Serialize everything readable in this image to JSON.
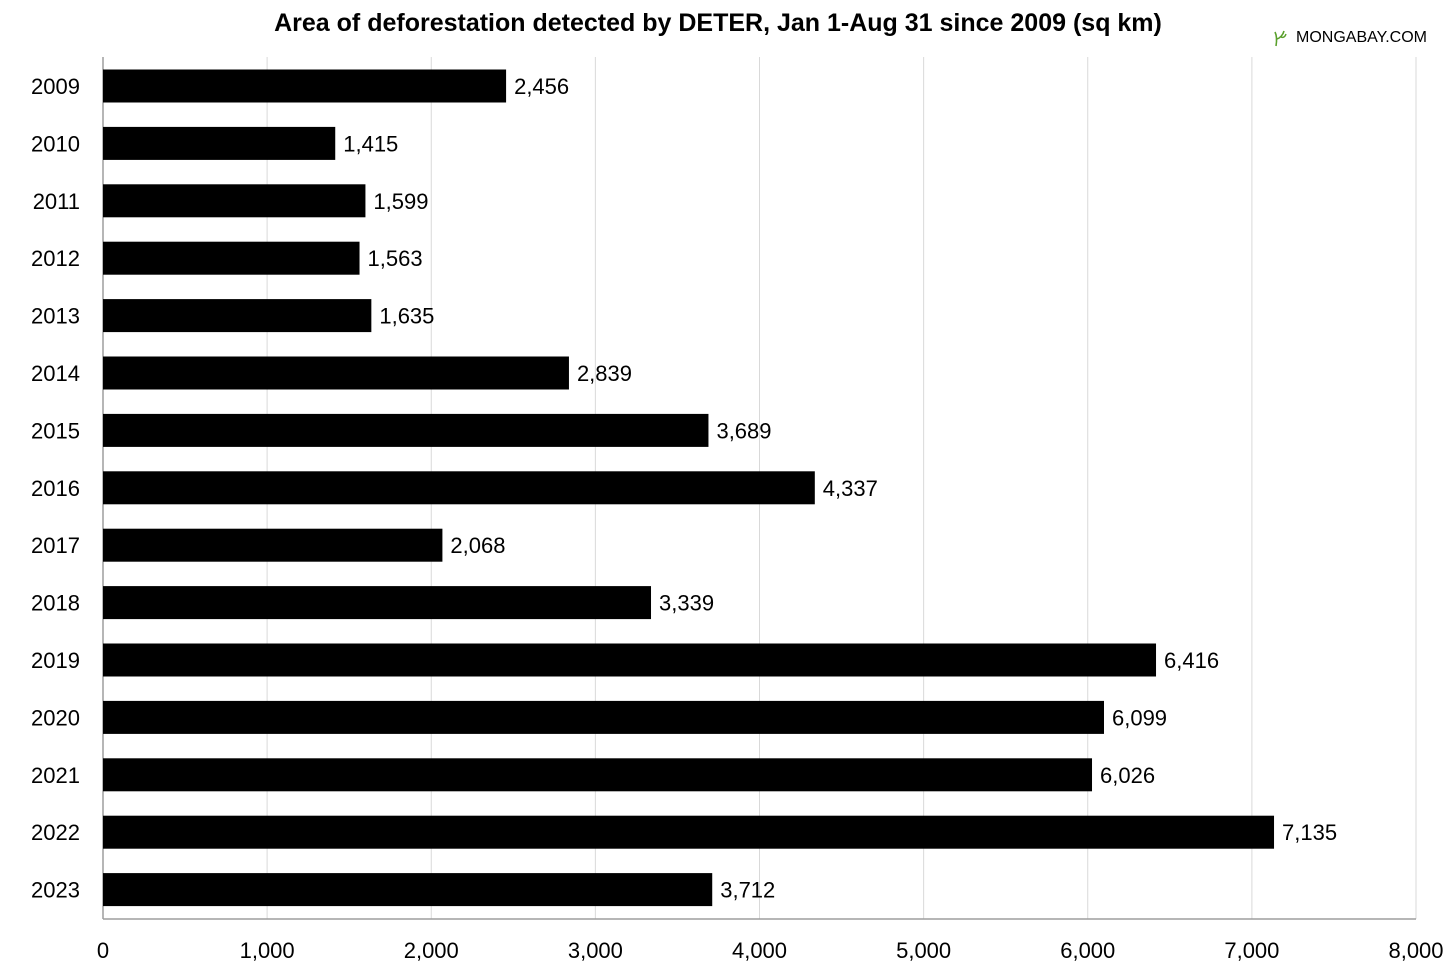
{
  "header": {
    "title": "Area of deforestation detected by DETER, Jan 1-Aug 31 since 2009 (sq km)",
    "brand": "MONGABAY.COM",
    "brand_icon": "mongabay-leaf-icon",
    "brand_icon_color": "#5aa02c"
  },
  "chart_data": {
    "type": "bar",
    "orientation": "horizontal",
    "title": "Area of deforestation detected by DETER, Jan 1-Aug 31 since 2009 (sq km)",
    "xlabel": "",
    "ylabel": "",
    "categories": [
      "2009",
      "2010",
      "2011",
      "2012",
      "2013",
      "2014",
      "2015",
      "2016",
      "2017",
      "2018",
      "2019",
      "2020",
      "2021",
      "2022",
      "2023"
    ],
    "values": [
      2456,
      1415,
      1599,
      1563,
      1635,
      2839,
      3689,
      4337,
      2068,
      3339,
      6416,
      6099,
      6026,
      7135,
      3712
    ],
    "value_labels": [
      "2,456",
      "1,415",
      "1,599",
      "1,563",
      "1,635",
      "2,839",
      "3,689",
      "4,337",
      "2,068",
      "3,339",
      "6,416",
      "6,099",
      "6,026",
      "7,135",
      "3,712"
    ],
    "xlim": [
      0,
      8000
    ],
    "xticks": [
      0,
      1000,
      2000,
      3000,
      4000,
      5000,
      6000,
      7000,
      8000
    ],
    "xtick_labels": [
      "0",
      "1,000",
      "2,000",
      "3,000",
      "4,000",
      "5,000",
      "6,000",
      "7,000",
      "8,000"
    ],
    "grid": "vertical",
    "legend": "none",
    "bar_color": "#000000",
    "grid_color": "#d9d9d9"
  }
}
